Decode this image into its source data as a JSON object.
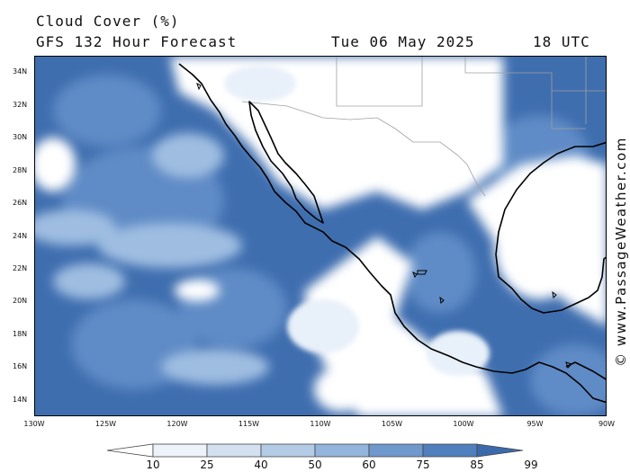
{
  "header": {
    "title": "Cloud Cover (%)",
    "subtitle": "GFS 132 Hour Forecast",
    "date": "Tue 06 May 2025",
    "time": "18 UTC"
  },
  "map": {
    "lat_labels": [
      "34N",
      "32N",
      "30N",
      "28N",
      "26N",
      "24N",
      "22N",
      "20N",
      "18N",
      "16N",
      "14N"
    ],
    "lon_labels": [
      "130W",
      "125W",
      "120W",
      "115W",
      "110W",
      "105W",
      "100W",
      "95W",
      "90W"
    ],
    "lat_range": [
      13,
      35
    ],
    "lon_range": [
      -130,
      -90
    ],
    "coastline_color": "#000000",
    "border_color": "#a0a0a0"
  },
  "legend": {
    "levels": [
      "10",
      "25",
      "40",
      "50",
      "60",
      "75",
      "85",
      "99"
    ],
    "colors": [
      "#ffffff",
      "#eef3fa",
      "#d3e0f0",
      "#b4cbe6",
      "#93b5dc",
      "#6f98cc",
      "#4f7fbd",
      "#3b6aac"
    ]
  },
  "credit": "© www.PassageWeather.com"
}
